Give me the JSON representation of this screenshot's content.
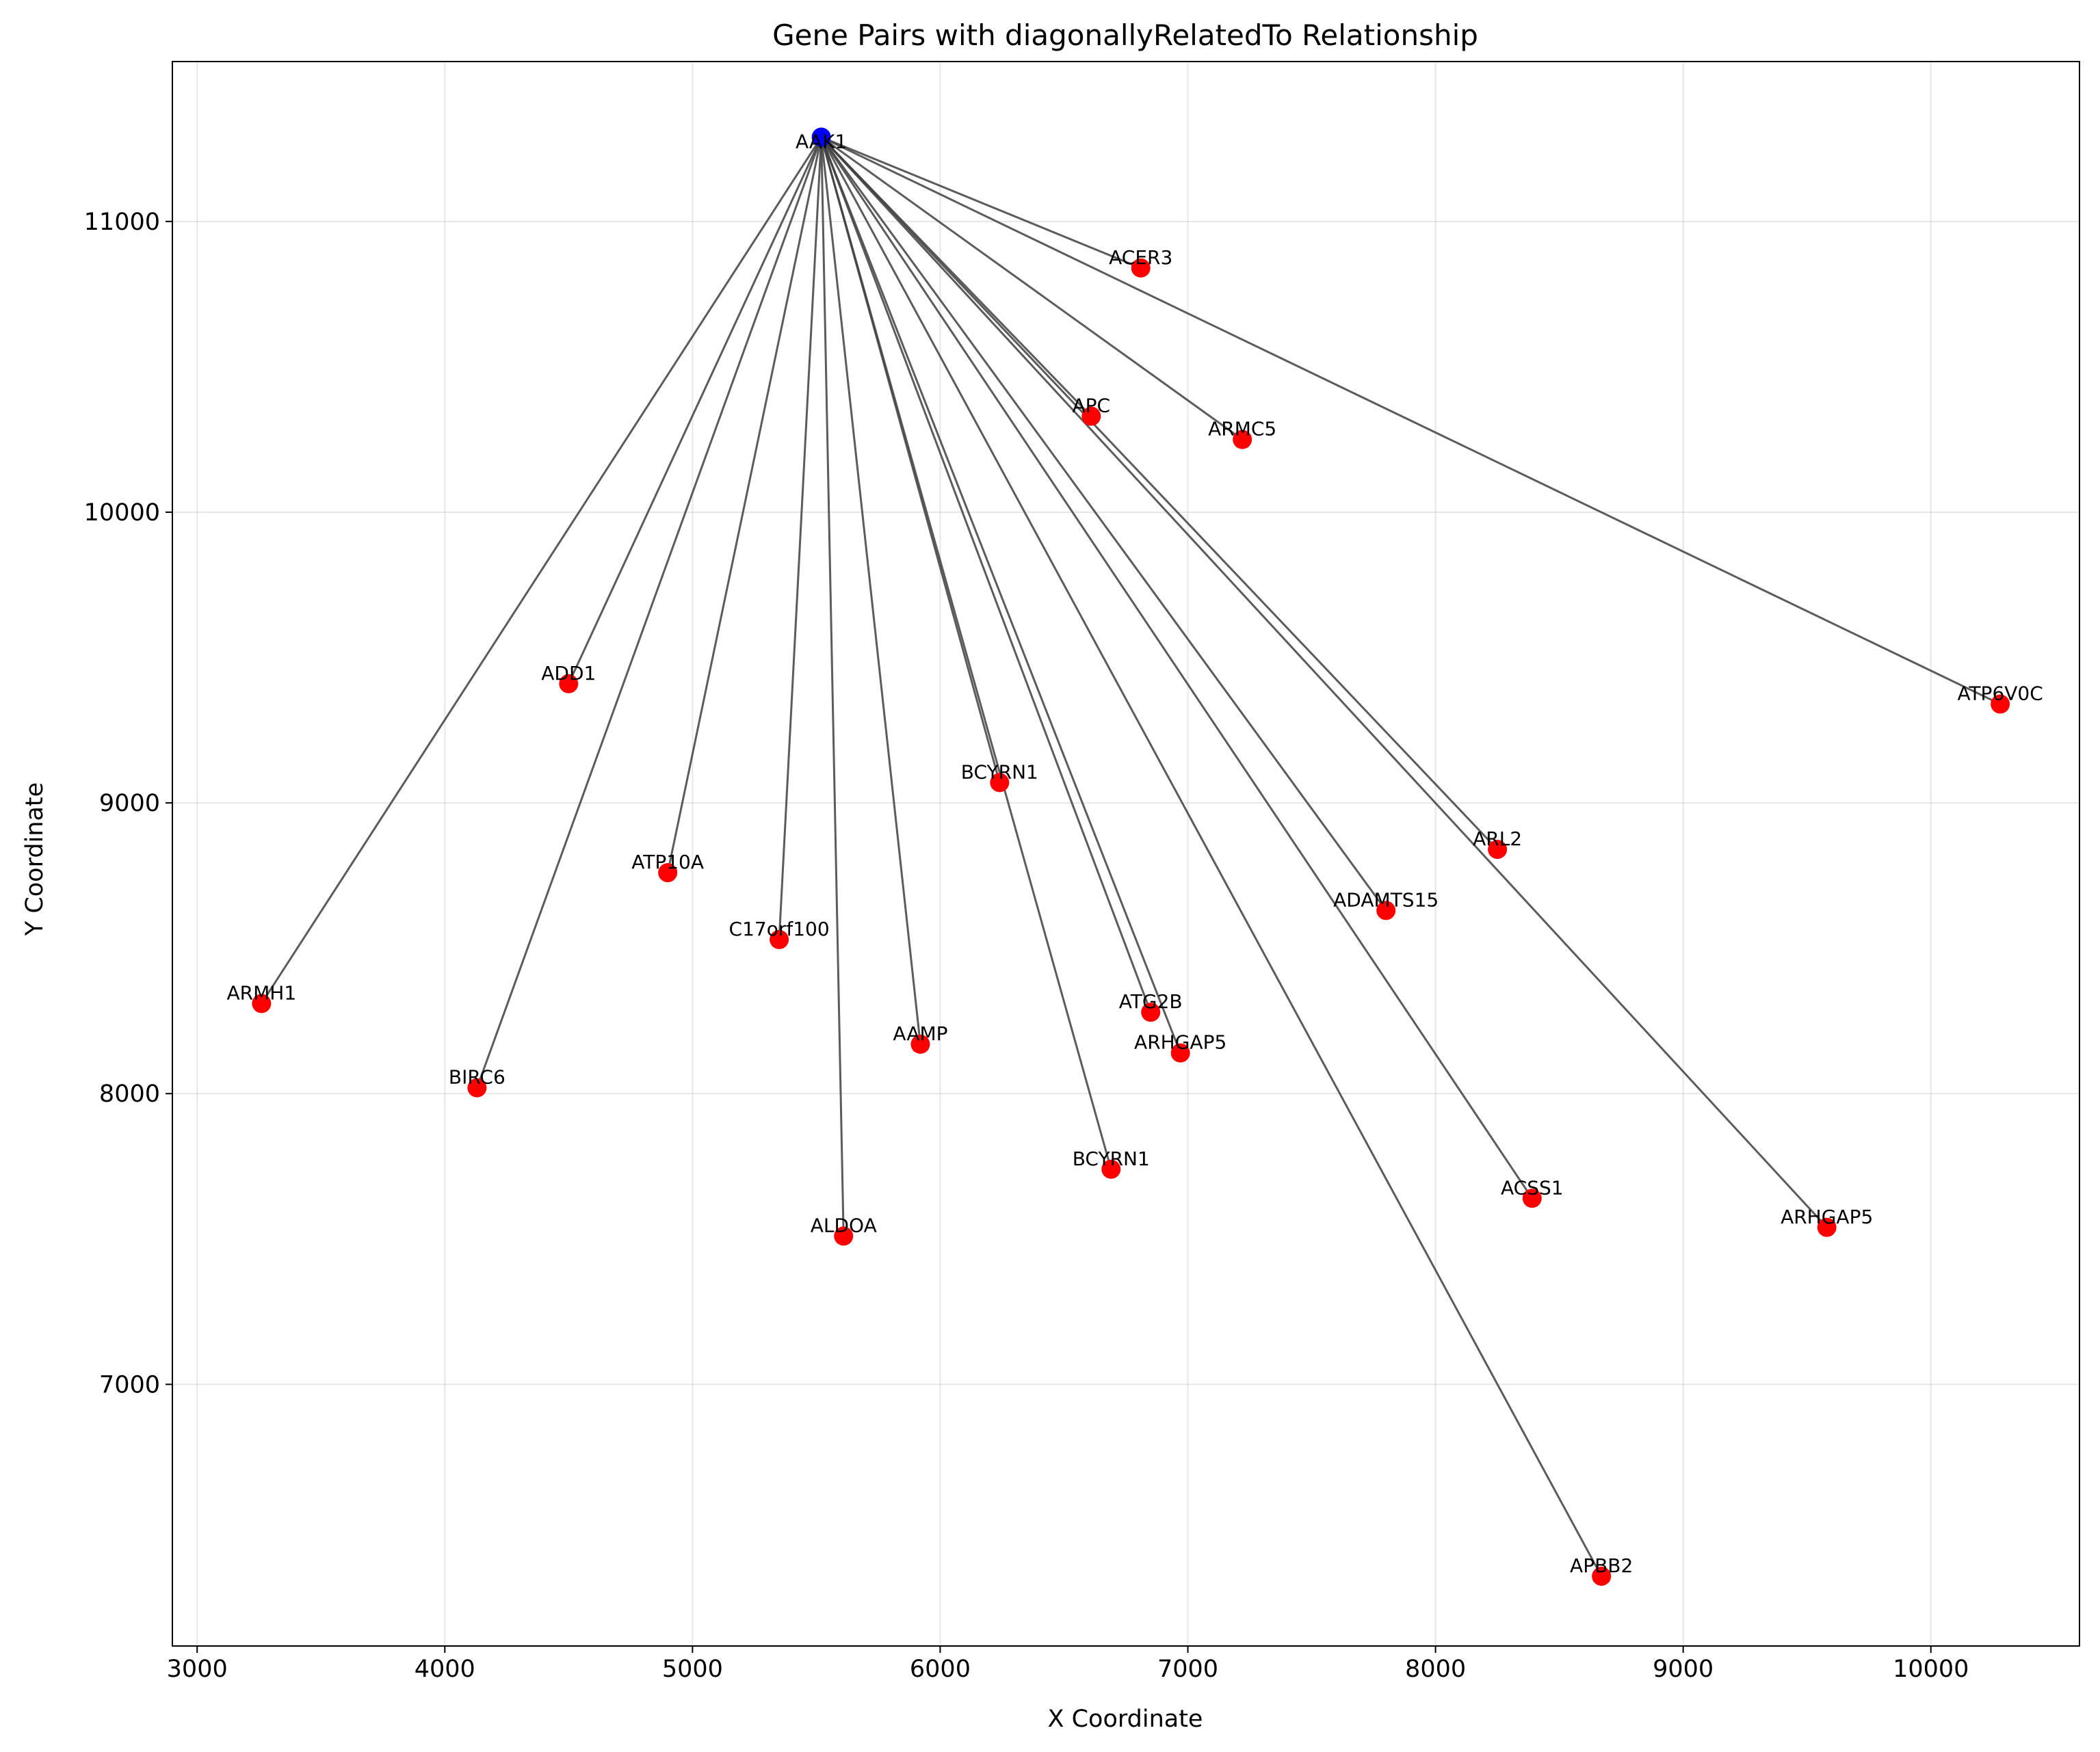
{
  "chart_data": {
    "type": "scatter",
    "title": "Gene Pairs with diagonallyRelatedTo Relationship",
    "xlabel": "X Coordinate",
    "ylabel": "Y Coordinate",
    "xlim": [
      2900,
      10600
    ],
    "ylim": [
      6100,
      11550
    ],
    "xticks": [
      3000,
      4000,
      5000,
      6000,
      7000,
      8000,
      9000,
      10000
    ],
    "yticks": [
      7000,
      8000,
      9000,
      10000,
      11000
    ],
    "grid": true,
    "source": {
      "label": "AAK1",
      "x": 5520,
      "y": 11290,
      "color": "#0000ff"
    },
    "target_color": "#ff0000",
    "edge_color": "#404040",
    "targets": [
      {
        "label": "ACER3",
        "x": 6810,
        "y": 10840
      },
      {
        "label": "APC",
        "x": 6610,
        "y": 10330
      },
      {
        "label": "ARMC5",
        "x": 7220,
        "y": 10250
      },
      {
        "label": "ATP6V0C",
        "x": 10280,
        "y": 9340
      },
      {
        "label": "ADD1",
        "x": 4500,
        "y": 9410
      },
      {
        "label": "BCYRN1",
        "x": 6240,
        "y": 9070
      },
      {
        "label": "ARL2",
        "x": 8250,
        "y": 8840
      },
      {
        "label": "ATP10A",
        "x": 4900,
        "y": 8760
      },
      {
        "label": "ADAMTS15",
        "x": 7800,
        "y": 8630
      },
      {
        "label": "C17orf100",
        "x": 5350,
        "y": 8530
      },
      {
        "label": "ARMH1",
        "x": 3260,
        "y": 8310
      },
      {
        "label": "ATG2B",
        "x": 6850,
        "y": 8280
      },
      {
        "label": "AAMP",
        "x": 5920,
        "y": 8170
      },
      {
        "label": "ARHGAP5",
        "x": 6970,
        "y": 8140
      },
      {
        "label": "BIRC6",
        "x": 4130,
        "y": 8020
      },
      {
        "label": "BCYRN1",
        "x": 6690,
        "y": 7740
      },
      {
        "label": "ACSS1",
        "x": 8390,
        "y": 7640
      },
      {
        "label": "ARHGAP5",
        "x": 9580,
        "y": 7540
      },
      {
        "label": "ALDOA",
        "x": 5610,
        "y": 7510
      },
      {
        "label": "APBB2",
        "x": 8670,
        "y": 6340
      }
    ]
  }
}
